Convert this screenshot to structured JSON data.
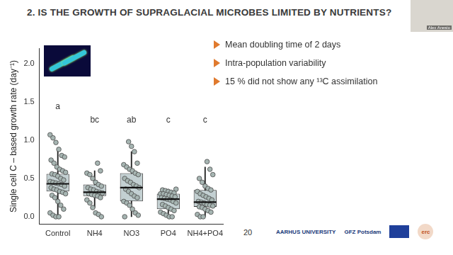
{
  "slide": {
    "title": "2. IS THE GROWTH OF SUPRAGLACIAL MICROBES LIMITED BY NUTRIENTS?",
    "bullets": [
      "Mean doubling time of 2 days",
      "Intra-population variability",
      "15 % did not show any ¹³C assimilation"
    ],
    "page_number": "20",
    "speaker": "Alex Anesio",
    "logos": [
      "AARHUS UNIVERSITY",
      "GFZ Potsdam",
      "erc"
    ]
  },
  "chart_data": {
    "type": "box",
    "y_label": "Single cell C – based growth rate (day⁻¹)",
    "categories": [
      "Control",
      "NH4",
      "NO3",
      "PO4",
      "NH4+PO4"
    ],
    "boxes": [
      {
        "min": 0.0,
        "q1": 0.33,
        "median": 0.43,
        "q3": 0.56,
        "max": 0.9
      },
      {
        "min": 0.12,
        "q1": 0.27,
        "median": 0.32,
        "q3": 0.42,
        "max": 0.6
      },
      {
        "min": 0.0,
        "q1": 0.2,
        "median": 0.38,
        "q3": 0.57,
        "max": 0.85
      },
      {
        "min": 0.0,
        "q1": 0.1,
        "median": 0.23,
        "q3": 0.3,
        "max": 0.36
      },
      {
        "min": 0.0,
        "q1": 0.13,
        "median": 0.19,
        "q3": 0.35,
        "max": 0.65
      }
    ],
    "points": [
      [
        1.07,
        1.03,
        0.97,
        0.88,
        0.8,
        0.78,
        0.74,
        0.7,
        0.65,
        0.62,
        0.6,
        0.58,
        0.56,
        0.55,
        0.53,
        0.5,
        0.48,
        0.46,
        0.45,
        0.44,
        0.43,
        0.42,
        0.4,
        0.38,
        0.36,
        0.35,
        0.33,
        0.32,
        0.3,
        0.28,
        0.25,
        0.2,
        0.15,
        0.1,
        0.05,
        0.02,
        0.0,
        0.0
      ],
      [
        0.7,
        0.6,
        0.57,
        0.55,
        0.5,
        0.45,
        0.42,
        0.4,
        0.38,
        0.36,
        0.35,
        0.33,
        0.32,
        0.31,
        0.3,
        0.29,
        0.28,
        0.27,
        0.25,
        0.22,
        0.18,
        0.12,
        0.05,
        0.03,
        0.0
      ],
      [
        0.98,
        0.92,
        0.85,
        0.7,
        0.68,
        0.65,
        0.62,
        0.6,
        0.57,
        0.55,
        0.5,
        0.47,
        0.45,
        0.42,
        0.4,
        0.38,
        0.36,
        0.33,
        0.3,
        0.27,
        0.25,
        0.2,
        0.18,
        0.15,
        0.1,
        0.05,
        0.02,
        0.0
      ],
      [
        0.36,
        0.35,
        0.34,
        0.33,
        0.32,
        0.31,
        0.3,
        0.3,
        0.29,
        0.28,
        0.27,
        0.26,
        0.25,
        0.24,
        0.23,
        0.22,
        0.2,
        0.18,
        0.16,
        0.14,
        0.12,
        0.1,
        0.08,
        0.06,
        0.04,
        0.02,
        0.0,
        0.0
      ],
      [
        0.72,
        0.62,
        0.55,
        0.5,
        0.45,
        0.4,
        0.37,
        0.35,
        0.33,
        0.3,
        0.28,
        0.26,
        0.24,
        0.22,
        0.2,
        0.19,
        0.18,
        0.16,
        0.15,
        0.14,
        0.13,
        0.12,
        0.1,
        0.08,
        0.06,
        0.03,
        0.0,
        0.0
      ]
    ],
    "letters": [
      "a",
      "bc",
      "ab",
      "c",
      "c"
    ],
    "color": "#c3d0d2",
    "ylim": [
      -0.1,
      2.2
    ],
    "yticks": [
      {
        "value": 0,
        "label": "0.0"
      },
      {
        "value": 0.5,
        "label": "0.5"
      },
      {
        "value": 1,
        "label": "1.0"
      },
      {
        "value": 1.5,
        "label": "1.5"
      },
      {
        "value": 2,
        "label": "2.0"
      }
    ],
    "grid": false
  }
}
